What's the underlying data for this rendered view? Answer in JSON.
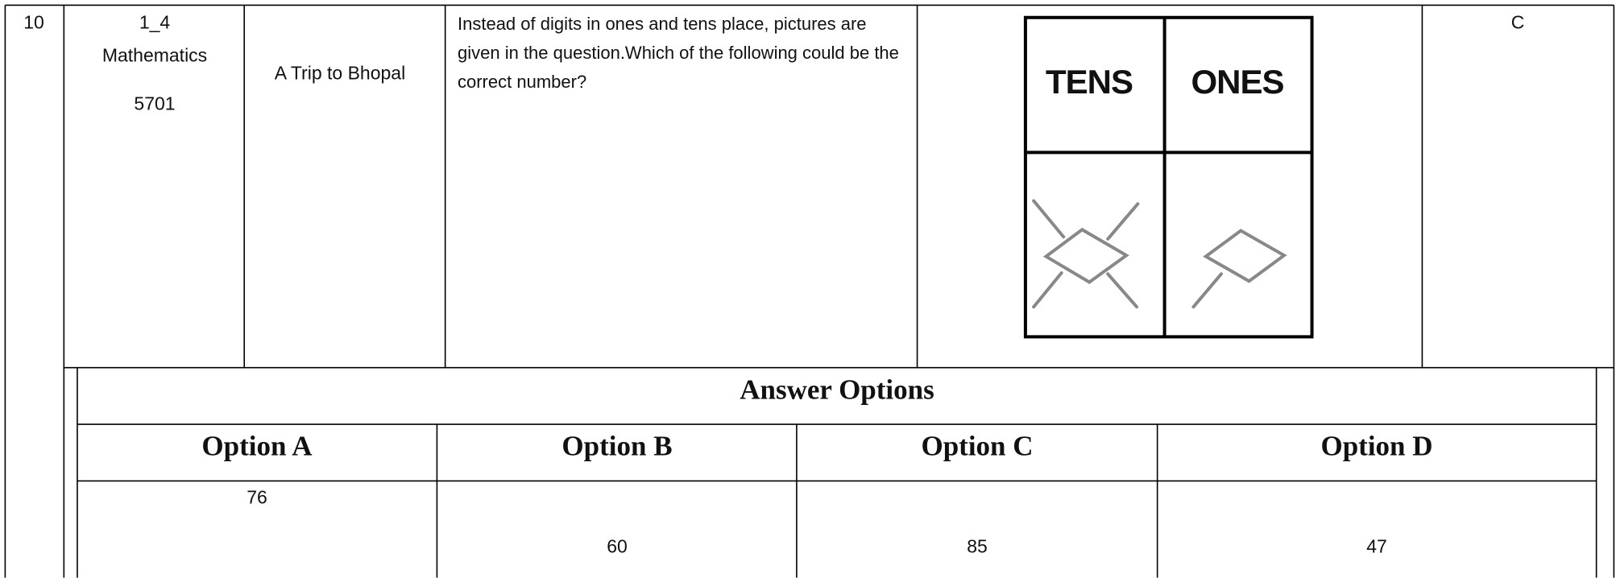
{
  "row": {
    "number": "10",
    "code": "1_4",
    "subject": "Mathematics",
    "id": "5701",
    "chapter": "A Trip to Bhopal",
    "question": "Instead of digits in ones and tens place, pictures are given in the question.Which of the following could be the  correct number?",
    "answer": "C"
  },
  "figure": {
    "headers": [
      "TENS",
      "ONES"
    ]
  },
  "options": {
    "title": "Answer Options",
    "headers": [
      "Option A",
      "Option B",
      "Option C",
      "Option D"
    ],
    "values": [
      "76",
      "60",
      "85",
      "47"
    ]
  }
}
